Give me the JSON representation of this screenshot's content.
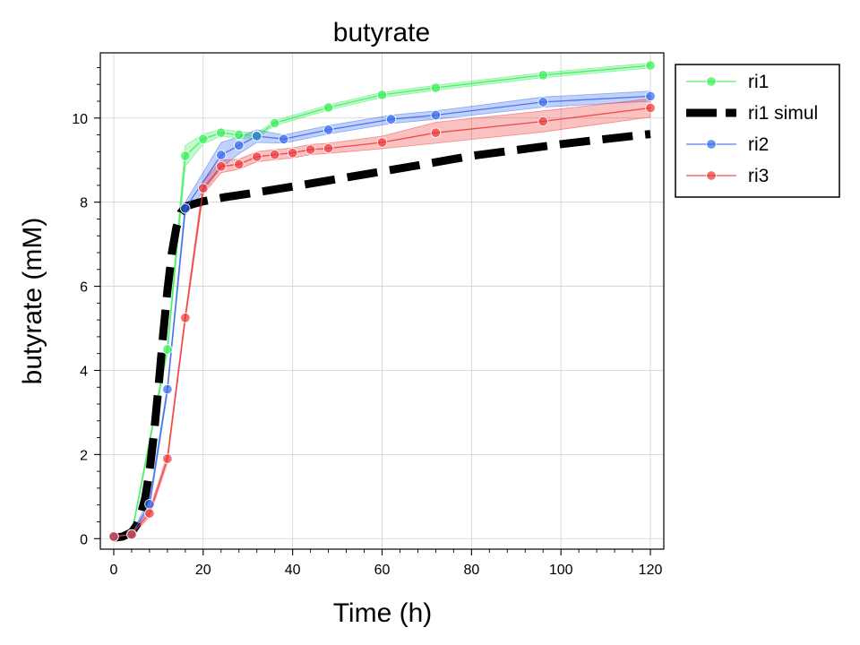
{
  "chart_data": {
    "type": "line",
    "title": "butyrate",
    "xlabel": "Time (h)",
    "ylabel": "butyrate (mM)",
    "xlim": [
      -3,
      123
    ],
    "ylim": [
      -0.25,
      11.55
    ],
    "xticks": [
      0,
      20,
      40,
      60,
      80,
      100,
      120
    ],
    "yticks": [
      0,
      2,
      4,
      6,
      8,
      10
    ],
    "grid": true,
    "legend_position": "outside-top-right",
    "series": [
      {
        "name": "ri1",
        "color": "#33ee55",
        "style": "line-markers-band",
        "x": [
          0,
          4,
          12,
          16,
          20,
          24,
          28,
          32,
          36,
          48,
          60,
          72,
          96,
          120
        ],
        "y": [
          0.05,
          0.1,
          4.5,
          9.1,
          9.5,
          9.65,
          9.6,
          9.58,
          9.88,
          10.25,
          10.55,
          10.72,
          11.02,
          11.25
        ],
        "band": [
          0.05,
          0.05,
          0.1,
          0.25,
          0.12,
          0.08,
          0.08,
          0.06,
          0.06,
          0.06,
          0.06,
          0.06,
          0.06,
          0.06
        ]
      },
      {
        "name": "ri1 simul",
        "color": "#000000",
        "style": "thick-dashed",
        "x": [
          0,
          2,
          4,
          5,
          6,
          7,
          8,
          9,
          10,
          11,
          12,
          13,
          14,
          15,
          16,
          17,
          18,
          20,
          25,
          30,
          40,
          50,
          60,
          70,
          80,
          90,
          100,
          110,
          120
        ],
        "y": [
          0.02,
          0.05,
          0.15,
          0.3,
          0.55,
          0.95,
          1.6,
          2.5,
          3.6,
          4.8,
          5.9,
          6.8,
          7.4,
          7.75,
          7.88,
          7.93,
          7.96,
          8.02,
          8.12,
          8.2,
          8.37,
          8.55,
          8.73,
          8.91,
          9.1,
          9.24,
          9.38,
          9.5,
          9.62
        ]
      },
      {
        "name": "ri2",
        "color": "#3366ee",
        "style": "line-markers-band",
        "x": [
          0,
          4,
          8,
          12,
          16,
          24,
          28,
          32,
          38,
          48,
          62,
          72,
          96,
          120
        ],
        "y": [
          0.05,
          0.1,
          0.82,
          3.55,
          7.85,
          9.12,
          9.35,
          9.57,
          9.5,
          9.72,
          9.97,
          10.07,
          10.38,
          10.52
        ],
        "band": [
          0.05,
          0.05,
          0.1,
          0.1,
          0.15,
          0.3,
          0.2,
          0.15,
          0.1,
          0.1,
          0.1,
          0.1,
          0.12,
          0.12
        ]
      },
      {
        "name": "ri3",
        "color": "#ee3333",
        "style": "line-markers-band",
        "x": [
          0,
          4,
          8,
          12,
          16,
          20,
          24,
          28,
          32,
          36,
          40,
          44,
          48,
          60,
          72,
          96,
          120
        ],
        "y": [
          0.05,
          0.1,
          0.6,
          1.9,
          5.25,
          8.33,
          8.85,
          8.9,
          9.08,
          9.13,
          9.17,
          9.25,
          9.28,
          9.42,
          9.65,
          9.92,
          10.24
        ],
        "band": [
          0.05,
          0.05,
          0.08,
          0.1,
          0.1,
          0.15,
          0.15,
          0.12,
          0.12,
          0.12,
          0.12,
          0.12,
          0.12,
          0.15,
          0.25,
          0.25,
          0.22
        ]
      }
    ]
  }
}
